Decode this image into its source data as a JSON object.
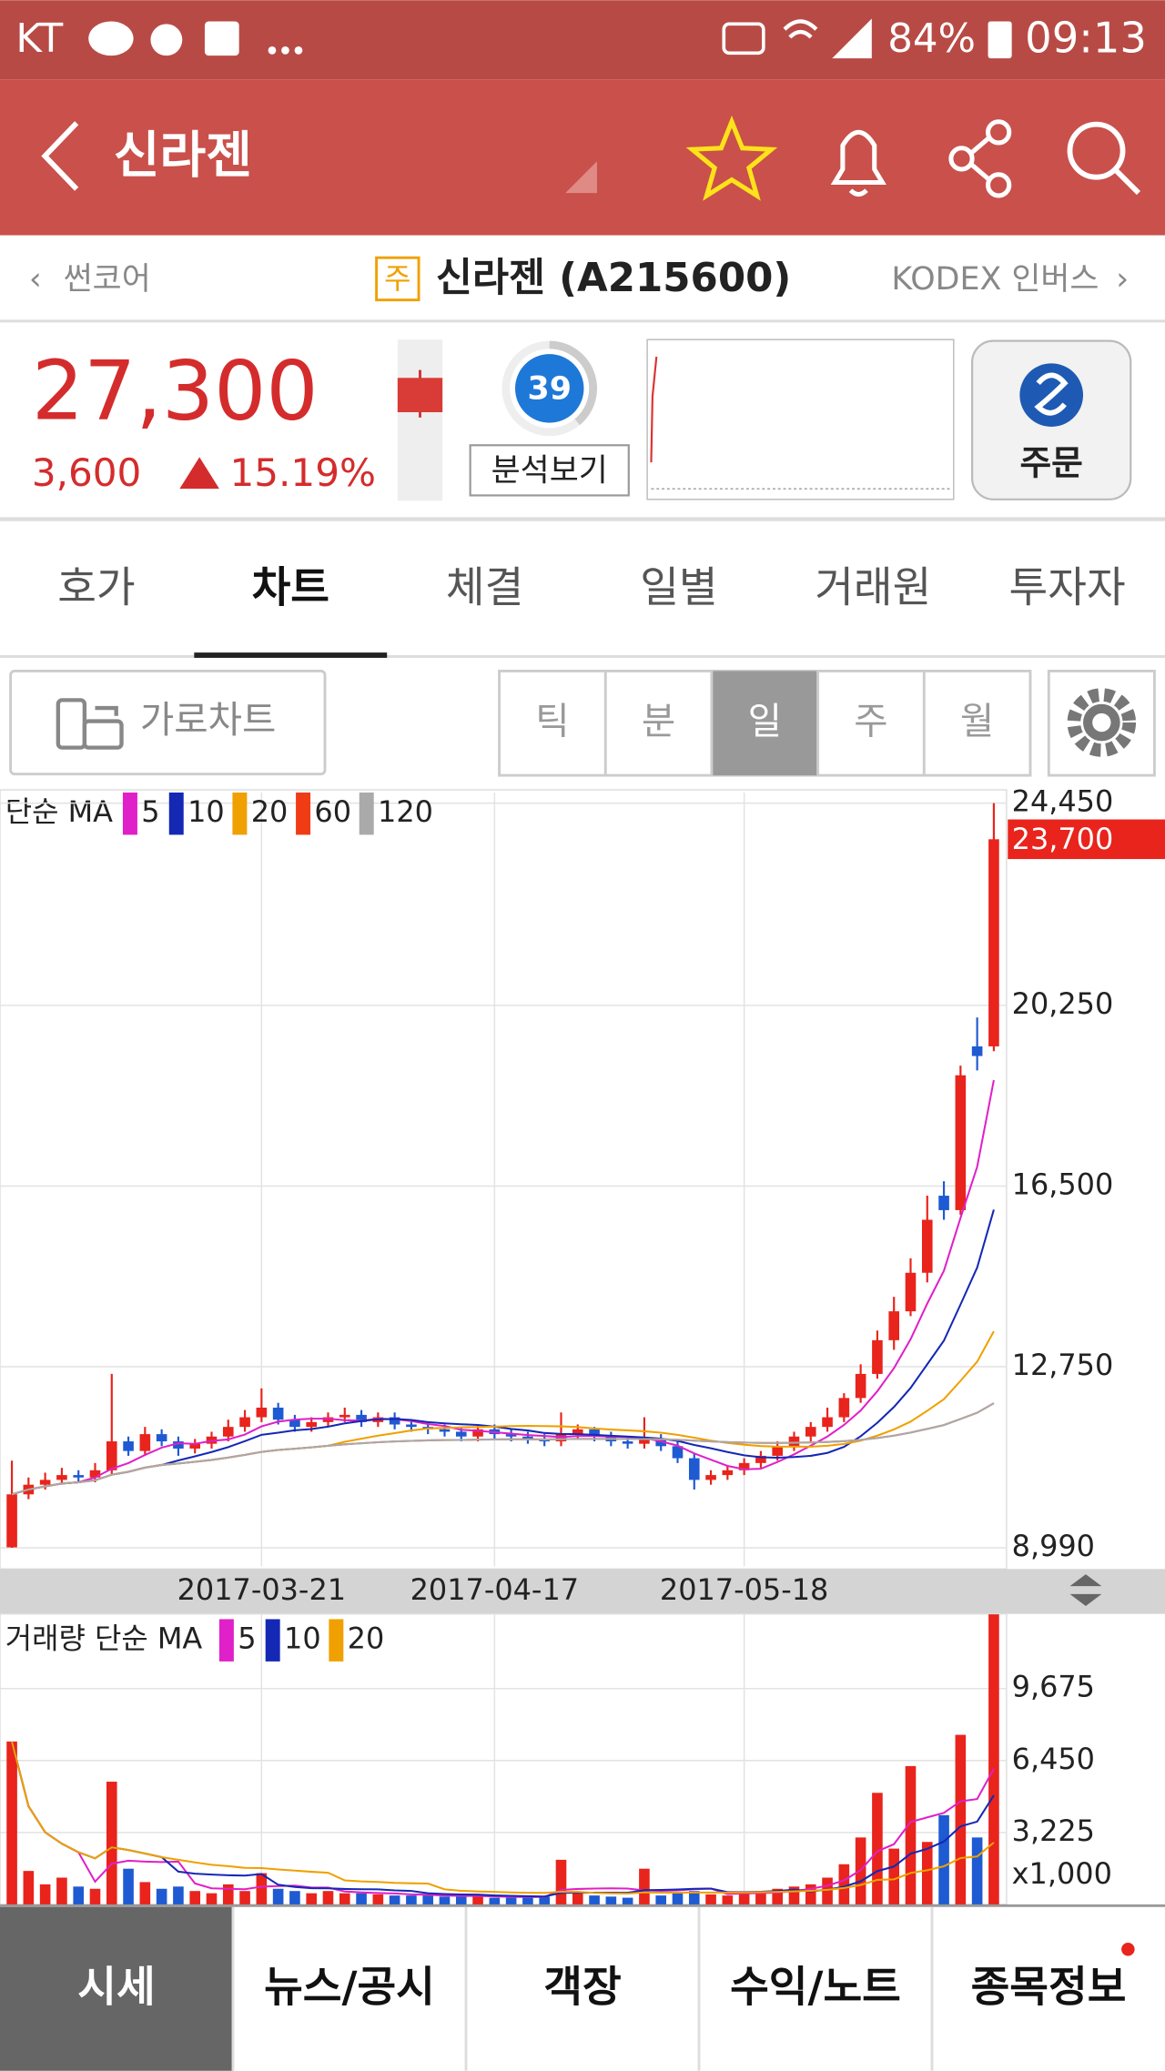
{
  "status_bar": {
    "carrier": "KT",
    "battery": "84%",
    "time": "09:13"
  },
  "header": {
    "title": "신라젠"
  },
  "nav": {
    "prev": "썬코어",
    "badge": "주",
    "name": "신라젠 (A215600)",
    "next": "KODEX 인버스"
  },
  "quote": {
    "price": "27,300",
    "change": "3,600",
    "change_pct": "15.19%",
    "score": 39,
    "analysis": "분석보기",
    "order": "주문"
  },
  "tabs": [
    "호가",
    "차트",
    "체결",
    "일별",
    "거래원",
    "투자자"
  ],
  "selected_tab": 1,
  "toolbar": {
    "landscape": "가로차트",
    "periods": [
      "틱",
      "분",
      "일",
      "주",
      "월"
    ],
    "selected_period": 2
  },
  "chart": {
    "type": "candlestick",
    "ma_label": "단순 MA",
    "ma": [
      {
        "period": 5,
        "color": "#e020c8"
      },
      {
        "period": 10,
        "color": "#1428b4"
      },
      {
        "period": 20,
        "color": "#f0a000"
      },
      {
        "period": 60,
        "color": "#f03c14"
      },
      {
        "period": 120,
        "color": "#aaaaaa"
      }
    ],
    "ylim": [
      8605,
      24670
    ],
    "yticks": [
      {
        "value": 24450,
        "label": "24,450"
      },
      {
        "value": 20250,
        "label": "20,250"
      },
      {
        "value": 16500,
        "label": "16,500"
      },
      {
        "value": 12750,
        "label": "12,750"
      },
      {
        "value": 8990,
        "label": "8,990"
      }
    ],
    "last_label": "23,700",
    "up_color": "#e8241c",
    "down_color": "#1e5ad2",
    "categories": [
      null,
      null,
      null,
      null,
      null,
      null,
      null,
      null,
      null,
      null,
      null,
      null,
      null,
      null,
      null,
      "2017-03-21",
      null,
      null,
      null,
      null,
      null,
      null,
      null,
      null,
      null,
      null,
      null,
      null,
      null,
      "2017-04-17",
      null,
      null,
      null,
      null,
      null,
      null,
      null,
      null,
      null,
      null,
      null,
      null,
      null,
      null,
      "2017-05-18",
      null,
      null,
      null,
      null,
      null,
      null,
      null,
      null,
      null,
      null,
      null,
      null,
      null,
      null,
      null
    ],
    "candles": [
      [
        9000,
        10800,
        8990,
        10100
      ],
      [
        10100,
        10450,
        10000,
        10300
      ],
      [
        10300,
        10550,
        10200,
        10400
      ],
      [
        10400,
        10650,
        10300,
        10500
      ],
      [
        10500,
        10600,
        10350,
        10450
      ],
      [
        10450,
        10750,
        10350,
        10600
      ],
      [
        10600,
        12600,
        10500,
        11200
      ],
      [
        11200,
        11300,
        10900,
        11000
      ],
      [
        11000,
        11500,
        10900,
        11350
      ],
      [
        11350,
        11450,
        11100,
        11200
      ],
      [
        11200,
        11300,
        10900,
        11050
      ],
      [
        11050,
        11250,
        10950,
        11150
      ],
      [
        11150,
        11400,
        11050,
        11300
      ],
      [
        11300,
        11650,
        11200,
        11500
      ],
      [
        11500,
        11850,
        11400,
        11700
      ],
      [
        11700,
        12300,
        11600,
        11900
      ],
      [
        11900,
        12000,
        11550,
        11650
      ],
      [
        11650,
        11750,
        11400,
        11500
      ],
      [
        11500,
        11700,
        11400,
        11600
      ],
      [
        11600,
        11800,
        11500,
        11700
      ],
      [
        11700,
        11900,
        11600,
        11750
      ],
      [
        11750,
        11850,
        11500,
        11600
      ],
      [
        11600,
        11800,
        11500,
        11700
      ],
      [
        11700,
        11800,
        11450,
        11550
      ],
      [
        11550,
        11650,
        11400,
        11500
      ],
      [
        11500,
        11600,
        11350,
        11450
      ],
      [
        11450,
        11550,
        11300,
        11400
      ],
      [
        11400,
        11500,
        11200,
        11300
      ],
      [
        11300,
        11550,
        11200,
        11450
      ],
      [
        11450,
        11550,
        11250,
        11350
      ],
      [
        11350,
        11450,
        11200,
        11300
      ],
      [
        11300,
        11400,
        11150,
        11250
      ],
      [
        11250,
        11350,
        11100,
        11200
      ],
      [
        11200,
        11800,
        11100,
        11350
      ],
      [
        11350,
        11550,
        11250,
        11450
      ],
      [
        11450,
        11500,
        11200,
        11300
      ],
      [
        11300,
        11400,
        11100,
        11200
      ],
      [
        11200,
        11300,
        11050,
        11150
      ],
      [
        11150,
        11700,
        11050,
        11250
      ],
      [
        11250,
        11350,
        11000,
        11100
      ],
      [
        11100,
        11200,
        10750,
        10850
      ],
      [
        10850,
        10950,
        10200,
        10400
      ],
      [
        10400,
        10600,
        10300,
        10500
      ],
      [
        10500,
        10700,
        10400,
        10600
      ],
      [
        10600,
        10850,
        10500,
        10750
      ],
      [
        10750,
        11000,
        10650,
        10900
      ],
      [
        10900,
        11200,
        10800,
        11100
      ],
      [
        11100,
        11400,
        11000,
        11300
      ],
      [
        11300,
        11600,
        11200,
        11500
      ],
      [
        11500,
        11900,
        11400,
        11700
      ],
      [
        11700,
        12200,
        11600,
        12100
      ],
      [
        12100,
        12800,
        12000,
        12600
      ],
      [
        12600,
        13500,
        12500,
        13300
      ],
      [
        13300,
        14200,
        13100,
        13900
      ],
      [
        13900,
        15000,
        13800,
        14700
      ],
      [
        14700,
        16300,
        14500,
        15800
      ],
      [
        16300,
        16600,
        15800,
        16000
      ],
      [
        16000,
        19000,
        15900,
        18800
      ],
      [
        19400,
        20000,
        18900,
        19200
      ],
      [
        19400,
        24450,
        19300,
        23700
      ]
    ],
    "volume": {
      "ma_label": "거래량 단순 MA",
      "ma": [
        {
          "period": 5,
          "color": "#e020c8"
        },
        {
          "period": 10,
          "color": "#1428b4"
        },
        {
          "period": 20,
          "color": "#f0a000"
        }
      ],
      "ylim": [
        0,
        13020
      ],
      "yticks": [
        {
          "value": 9675,
          "label": "9,675"
        },
        {
          "value": 6450,
          "label": "6,450"
        },
        {
          "value": 3225,
          "label": "3,225"
        }
      ],
      "unit": "x1,000",
      "values": [
        7300,
        1500,
        900,
        1200,
        800,
        700,
        5500,
        1600,
        1000,
        700,
        800,
        600,
        500,
        900,
        600,
        1400,
        700,
        600,
        500,
        600,
        500,
        500,
        450,
        400,
        400,
        400,
        350,
        350,
        400,
        300,
        300,
        300,
        350,
        2000,
        500,
        400,
        350,
        300,
        1600,
        400,
        500,
        600,
        450,
        400,
        500,
        600,
        700,
        800,
        900,
        1200,
        1800,
        3000,
        5000,
        2500,
        6200,
        2800,
        4000,
        7600,
        3000,
        13000
      ]
    }
  },
  "bottom_nav": [
    "시세",
    "뉴스/공시",
    "객장",
    "수익/노트",
    "종목정보"
  ],
  "selected_nav": 0
}
